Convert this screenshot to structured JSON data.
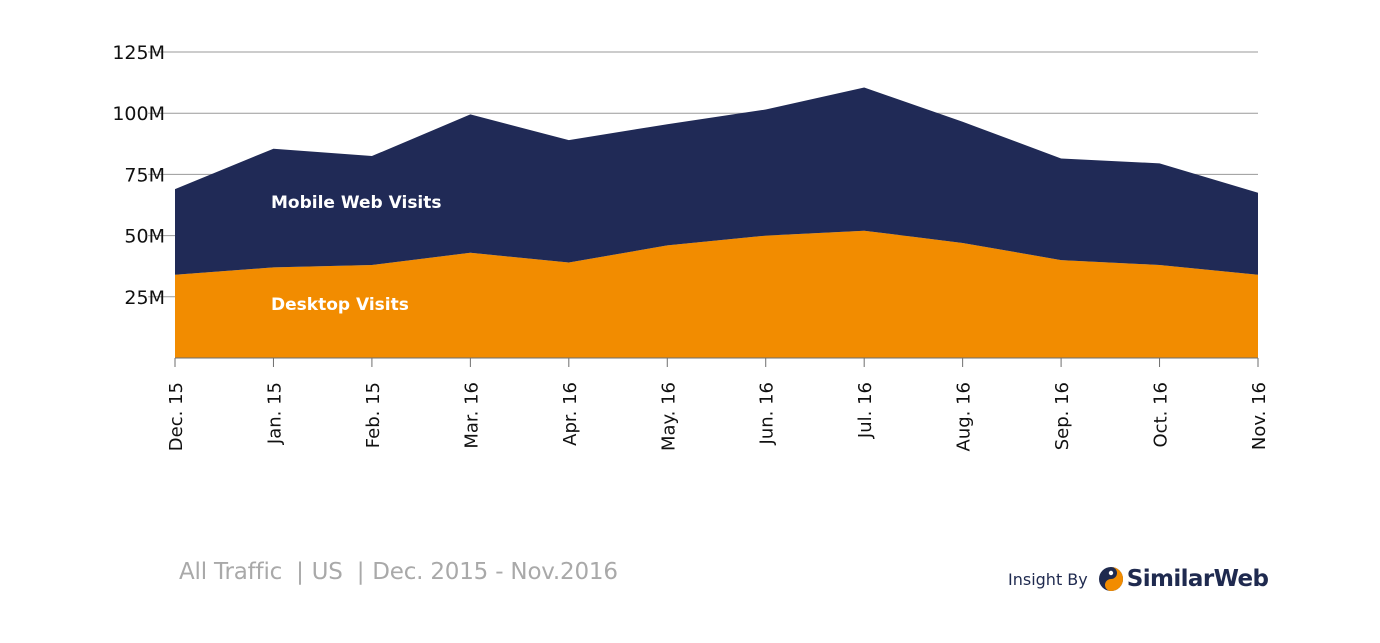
{
  "chart_data": {
    "type": "area",
    "stacked": true,
    "categories": [
      "Dec. 15",
      "Jan. 15",
      "Feb. 15",
      "Mar. 16",
      "Apr. 16",
      "May. 16",
      "Jun. 16",
      "Jul. 16",
      "Aug. 16",
      "Sep. 16",
      "Oct. 16",
      "Nov. 16"
    ],
    "series": [
      {
        "name": "Desktop Visits",
        "color": "#f28c00",
        "values": [
          34,
          37,
          38,
          43,
          39,
          46,
          50,
          52,
          47,
          40,
          38,
          34
        ]
      },
      {
        "name": "Mobile Web Visits",
        "color": "#202a56",
        "values": [
          35,
          48.5,
          44.5,
          56.5,
          50,
          49.5,
          51.5,
          58.5,
          49.5,
          41.5,
          41.5,
          33.5
        ]
      }
    ],
    "yticks": [
      "25M",
      "50M",
      "75M",
      "100M",
      "125M"
    ],
    "ylim": [
      0,
      125
    ],
    "grid": true,
    "gridline_color": "#9a9a9a"
  },
  "footer": {
    "segments": [
      "All Traffic",
      "US",
      "Dec. 2015 - Nov.2016"
    ],
    "separator": "|"
  },
  "brand": {
    "prefix": "Insight By",
    "name": "SimilarWeb",
    "logo_icon": "similarweb-logo-icon",
    "color_dark": "#1f2a4f",
    "color_accent": "#f28c00"
  }
}
